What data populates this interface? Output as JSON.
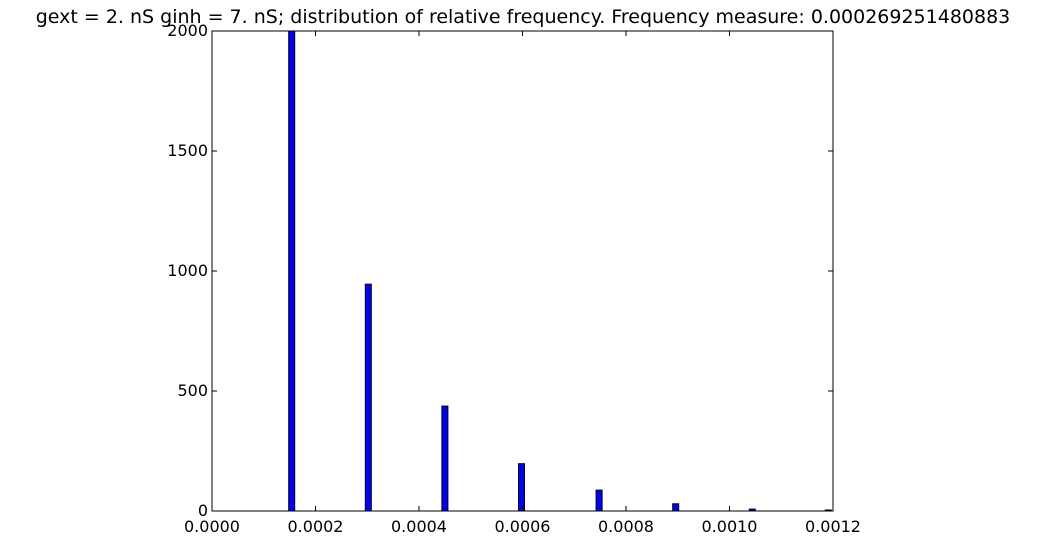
{
  "chart_data": {
    "type": "bar",
    "title": "gext = 2. nS ginh = 7. nS; distribution of relative frequency. Frequency measure: 0.000269251480883",
    "xlabel": "",
    "ylabel": "",
    "xlim": [
      0.0,
      0.0012
    ],
    "ylim": [
      0,
      2000
    ],
    "x_ticks": [
      "0.0000",
      "0.0002",
      "0.0004",
      "0.0006",
      "0.0008",
      "0.0010",
      "0.0012"
    ],
    "y_ticks": [
      "0",
      "500",
      "1000",
      "1500",
      "2000"
    ],
    "bar_width": 4.5e-06,
    "grid": false,
    "legend": "none",
    "bar_color": "#0000ff",
    "edge_color": "#000000",
    "bars": [
      {
        "x": 0.000154,
        "value": 2000
      },
      {
        "x": 0.000302,
        "value": 945
      },
      {
        "x": 0.00045,
        "value": 437
      },
      {
        "x": 0.000598,
        "value": 197
      },
      {
        "x": 0.000748,
        "value": 87
      },
      {
        "x": 0.000896,
        "value": 30
      },
      {
        "x": 0.001044,
        "value": 8
      },
      {
        "x": 0.001191,
        "value": 4
      }
    ]
  }
}
